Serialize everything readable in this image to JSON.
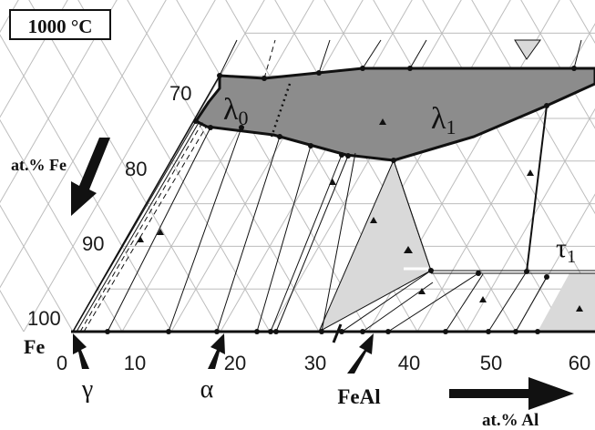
{
  "title": "1000 °C",
  "axes": {
    "fe_axis_label": "at.% Fe",
    "al_axis_label": "at.% Al",
    "fe_ticks": [
      "70",
      "80",
      "90",
      "100"
    ],
    "al_ticks": [
      "0",
      "10",
      "20",
      "30",
      "40",
      "50",
      "60"
    ],
    "corner_label": "Fe"
  },
  "phases": {
    "lambda0": {
      "symbol": "λ",
      "sub": "0"
    },
    "lambda1": {
      "symbol": "λ",
      "sub": "1"
    },
    "tau1": {
      "symbol": "τ",
      "sub": "1"
    },
    "gamma": "γ",
    "alpha": "α",
    "feal": "FeAl"
  },
  "colors": {
    "lambda_region": "#8c8c8c",
    "two_phase_region": "#d9d9d9",
    "grid": "#bdbdbd",
    "line": "#111111"
  }
}
